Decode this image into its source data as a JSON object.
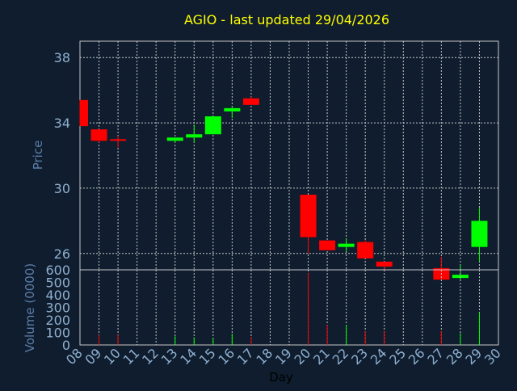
{
  "chart_data": {
    "type": "candlestick",
    "title": "AGIO - last updated 29/04/2026",
    "xlabel": "Day",
    "price_panel": {
      "ylabel": "Price",
      "ylim": [
        25,
        39
      ],
      "yticks": [
        26,
        30,
        34,
        38
      ],
      "grid": true
    },
    "volume_panel": {
      "ylabel": "Volume (0000)",
      "ylim": [
        0,
        600
      ],
      "yticks": [
        0,
        100,
        200,
        300,
        400,
        500,
        600
      ]
    },
    "x_range": [
      8,
      30
    ],
    "x_ticks": [
      "08",
      "09",
      "10",
      "11",
      "12",
      "13",
      "14",
      "15",
      "16",
      "17",
      "18",
      "19",
      "20",
      "21",
      "22",
      "23",
      "24",
      "25",
      "26",
      "27",
      "28",
      "29",
      "30"
    ],
    "candles": [
      {
        "day": 8,
        "open": 35.4,
        "high": 35.4,
        "low": 33.8,
        "close": 33.8
      },
      {
        "day": 9,
        "open": 33.6,
        "high": 33.6,
        "low": 32.8,
        "close": 32.9
      },
      {
        "day": 10,
        "open": 33.0,
        "high": 33.2,
        "low": 32.5,
        "close": 32.9
      },
      {
        "day": 13,
        "open": 32.9,
        "high": 33.1,
        "low": 32.8,
        "close": 33.1
      },
      {
        "day": 14,
        "open": 33.1,
        "high": 33.9,
        "low": 32.8,
        "close": 33.3
      },
      {
        "day": 15,
        "open": 33.3,
        "high": 34.4,
        "low": 33.3,
        "close": 34.4
      },
      {
        "day": 16,
        "open": 34.7,
        "high": 35.0,
        "low": 34.3,
        "close": 34.9
      },
      {
        "day": 17,
        "open": 35.5,
        "high": 35.6,
        "low": 35.1,
        "close": 35.1
      },
      {
        "day": 20,
        "open": 29.6,
        "high": 29.6,
        "low": 26.0,
        "close": 27.0
      },
      {
        "day": 21,
        "open": 26.8,
        "high": 26.8,
        "low": 26.2,
        "close": 26.2
      },
      {
        "day": 22,
        "open": 26.4,
        "high": 26.9,
        "low": 26.1,
        "close": 26.6
      },
      {
        "day": 23,
        "open": 26.7,
        "high": 26.8,
        "low": 25.7,
        "close": 25.7
      },
      {
        "day": 24,
        "open": 25.5,
        "high": 25.5,
        "low": 24.9,
        "close": 25.2
      },
      {
        "day": 27,
        "open": 25.1,
        "high": 25.8,
        "low": 24.4,
        "close": 24.4
      },
      {
        "day": 28,
        "open": 24.5,
        "high": 25.3,
        "low": 24.4,
        "close": 24.7
      },
      {
        "day": 29,
        "open": 26.4,
        "high": 28.8,
        "low": 25.5,
        "close": 28.0
      }
    ],
    "volumes": [
      {
        "day": 8,
        "value": 0,
        "color": "red"
      },
      {
        "day": 9,
        "value": 80,
        "color": "red"
      },
      {
        "day": 10,
        "value": 80,
        "color": "red"
      },
      {
        "day": 13,
        "value": 70,
        "color": "green"
      },
      {
        "day": 14,
        "value": 60,
        "color": "green"
      },
      {
        "day": 15,
        "value": 55,
        "color": "green"
      },
      {
        "day": 16,
        "value": 90,
        "color": "green"
      },
      {
        "day": 17,
        "value": 65,
        "color": "red"
      },
      {
        "day": 20,
        "value": 575,
        "color": "red"
      },
      {
        "day": 21,
        "value": 160,
        "color": "red"
      },
      {
        "day": 22,
        "value": 160,
        "color": "green"
      },
      {
        "day": 23,
        "value": 110,
        "color": "red"
      },
      {
        "day": 24,
        "value": 110,
        "color": "red"
      },
      {
        "day": 27,
        "value": 110,
        "color": "red"
      },
      {
        "day": 28,
        "value": 95,
        "color": "green"
      },
      {
        "day": 29,
        "value": 260,
        "color": "green"
      }
    ],
    "colors": {
      "background": "#0f1d2e",
      "title": "#ffff00",
      "axis_text": "#8fb0d0",
      "axis_title": "#5b7ea8",
      "day_label": "#000000",
      "grid": "#c8c8c8",
      "frame": "#c8c8c8",
      "up": "#00ff00",
      "down": "#ff0000"
    }
  }
}
